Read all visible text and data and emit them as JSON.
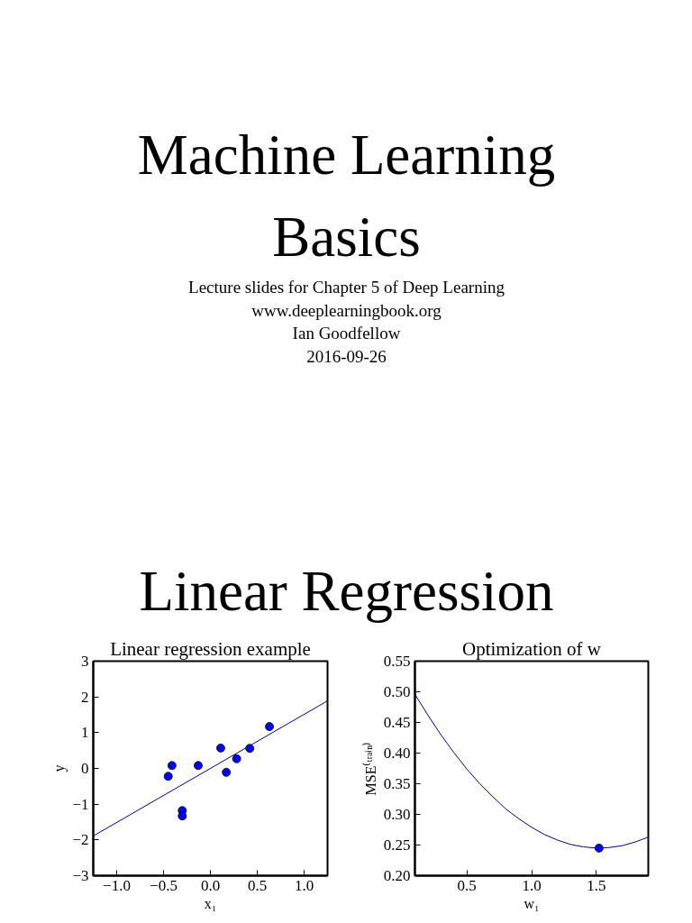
{
  "chart_data": [
    {
      "type": "other",
      "title": "Machine Learning Basics",
      "annotations": [
        "Lecture slides for Chapter 5 of Deep Learning",
        "www.deeplearningbook.org",
        "Ian Goodfellow",
        "2016-09-26"
      ]
    },
    {
      "type": "other",
      "title": "Linear Regression"
    },
    {
      "type": "scatter",
      "title": "Linear regression example",
      "xlabel": "x₁",
      "ylabel": "y",
      "xlim": [
        -1.25,
        1.25
      ],
      "ylim": [
        -3,
        3
      ],
      "xticks": [
        {
          "value": -1,
          "label": "−1.0"
        },
        {
          "value": -0.5,
          "label": "−0.5"
        },
        {
          "value": 0,
          "label": "0.0"
        },
        {
          "value": 0.5,
          "label": "0.5"
        },
        {
          "value": 1,
          "label": "1.0"
        }
      ],
      "yticks": [
        {
          "value": -3,
          "label": "−3"
        },
        {
          "value": -2,
          "label": "−2"
        },
        {
          "value": -1,
          "label": "−1"
        },
        0,
        1,
        2,
        3
      ],
      "series": [
        {
          "type": "line",
          "color": "#00008b",
          "x": [
            -1.25,
            1.25
          ],
          "values": [
            -1.89,
            1.89
          ]
        },
        {
          "type": "scatter",
          "marker": "circle",
          "color": "#0000ff",
          "x": [
            -0.45,
            -0.41,
            -0.3,
            -0.3,
            -0.13,
            0.11,
            0.17,
            0.28,
            0.42,
            0.63
          ],
          "values": [
            -0.22,
            0.08,
            -1.18,
            -1.33,
            0.08,
            0.57,
            -0.11,
            0.27,
            0.56,
            1.17
          ]
        }
      ]
    },
    {
      "type": "line",
      "title": "Optimization of w",
      "xlabel": "w₁",
      "ylabel": "MSE⁽ᵗʳᵃⁱⁿ⁾",
      "xlim": [
        0.1,
        1.9
      ],
      "ylim": [
        0.2,
        0.55
      ],
      "xticks": [
        {
          "value": 0.5,
          "label": "0.5"
        },
        {
          "value": 1,
          "label": "1.0"
        },
        {
          "value": 1.5,
          "label": "1.5"
        }
      ],
      "yticks": [
        {
          "value": 0.2,
          "label": "0.20"
        },
        0.25,
        {
          "value": 0.3,
          "label": "0.30"
        },
        0.35,
        {
          "value": 0.4,
          "label": "0.40"
        },
        0.45,
        {
          "value": 0.5,
          "label": "0.50"
        },
        0.55
      ],
      "series": [
        {
          "type": "line",
          "color": "#00008b",
          "x": [
            0.1,
            0.2,
            0.3,
            0.4,
            0.5,
            0.6,
            0.7,
            0.8,
            0.9,
            1.0,
            1.1,
            1.2,
            1.3,
            1.4,
            1.5,
            1.6,
            1.7,
            1.8,
            1.9
          ],
          "values": [
            0.496,
            0.462,
            0.43,
            0.401,
            0.374,
            0.35,
            0.329,
            0.309,
            0.293,
            0.279,
            0.267,
            0.258,
            0.251,
            0.247,
            0.245,
            0.246,
            0.249,
            0.255,
            0.263
          ]
        },
        {
          "type": "scatter",
          "marker": "circle",
          "color": "#0000ff",
          "x": [
            1.52
          ],
          "values": [
            0.245
          ]
        }
      ]
    }
  ]
}
